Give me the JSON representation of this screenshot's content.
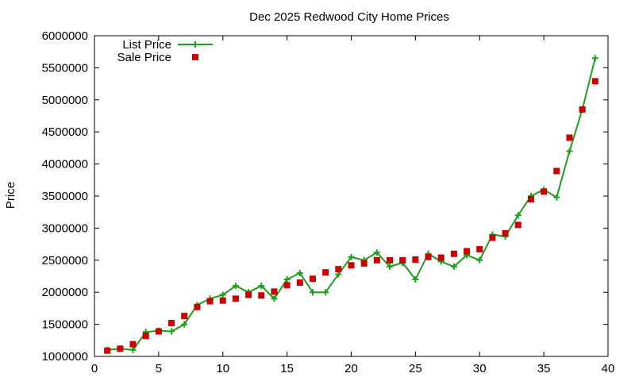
{
  "chart_data": {
    "type": "line",
    "title": "Dec 2025 Redwood City Home Prices",
    "xlabel": "",
    "ylabel": "Price",
    "xlim": [
      0,
      40
    ],
    "ylim": [
      1000000,
      6000000
    ],
    "xticks": [
      0,
      5,
      10,
      15,
      20,
      25,
      30,
      35,
      40
    ],
    "yticks": [
      1000000,
      1500000,
      2000000,
      2500000,
      3000000,
      3500000,
      4000000,
      4500000,
      5000000,
      5500000,
      6000000
    ],
    "grid": false,
    "legend_position": "top-left",
    "series": [
      {
        "name": "List Price",
        "style": "line+plus",
        "color": "#1aa01a",
        "x": [
          1,
          2,
          3,
          4,
          5,
          6,
          7,
          8,
          9,
          10,
          11,
          12,
          13,
          14,
          15,
          16,
          17,
          18,
          19,
          20,
          21,
          22,
          23,
          24,
          25,
          26,
          27,
          28,
          29,
          30,
          31,
          32,
          33,
          34,
          35,
          36,
          37,
          38,
          39
        ],
        "y": [
          1100000,
          1120000,
          1100000,
          1380000,
          1400000,
          1390000,
          1500000,
          1800000,
          1900000,
          1960000,
          2100000,
          2000000,
          2100000,
          1900000,
          2200000,
          2300000,
          2000000,
          2000000,
          2280000,
          2550000,
          2500000,
          2620000,
          2400000,
          2460000,
          2200000,
          2600000,
          2480000,
          2400000,
          2580000,
          2500000,
          2900000,
          2870000,
          3200000,
          3500000,
          3600000,
          3480000,
          4200000,
          4850000,
          5650000
        ]
      },
      {
        "name": "Sale Price",
        "style": "square",
        "color": "#cc0000",
        "x": [
          1,
          2,
          3,
          4,
          5,
          6,
          7,
          8,
          9,
          10,
          11,
          12,
          13,
          14,
          15,
          16,
          17,
          18,
          19,
          20,
          21,
          22,
          23,
          24,
          25,
          26,
          27,
          28,
          29,
          30,
          31,
          32,
          33,
          34,
          35,
          36,
          37,
          38,
          39
        ],
        "y": [
          1090000,
          1120000,
          1190000,
          1320000,
          1390000,
          1520000,
          1630000,
          1770000,
          1860000,
          1870000,
          1900000,
          1960000,
          1950000,
          2010000,
          2110000,
          2150000,
          2210000,
          2310000,
          2360000,
          2420000,
          2450000,
          2500000,
          2500000,
          2500000,
          2510000,
          2550000,
          2540000,
          2600000,
          2640000,
          2670000,
          2850000,
          2920000,
          3050000,
          3450000,
          3570000,
          3890000,
          4410000,
          4850000,
          5290000
        ]
      }
    ]
  }
}
